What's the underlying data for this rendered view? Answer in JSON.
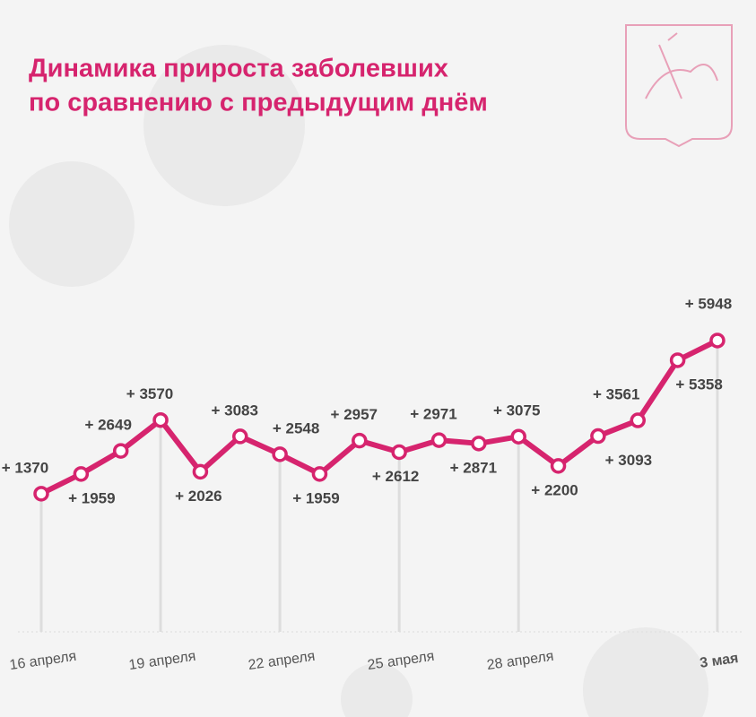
{
  "chart_data": {
    "type": "line",
    "title": [
      "Динамика прироста заболевших",
      "по сравнению с предыдущим днём"
    ],
    "categories": [
      "16 апреля",
      null,
      null,
      "19 апреля",
      null,
      null,
      "22 апреля",
      null,
      null,
      "25 апреля",
      null,
      null,
      "28 апреля",
      null,
      null,
      null,
      null,
      "3 мая"
    ],
    "series": [
      {
        "name": null,
        "color": "#d6246e",
        "values": [
          1370,
          1959,
          2649,
          3570,
          2026,
          3083,
          2548,
          1959,
          2957,
          2612,
          2971,
          2871,
          3075,
          2200,
          3093,
          3561,
          5358,
          5948
        ],
        "value_labels": [
          "+ 1370",
          "+ 1959",
          "+ 2649",
          "+ 3570",
          "+ 2026",
          "+ 3083",
          "+ 2548",
          "+ 1959",
          "+ 2957",
          "+ 2612",
          "+ 2971",
          "+ 2871",
          "+ 3075",
          "+ 2200",
          "+ 3093",
          "+ 3561",
          "+ 5358",
          "+ 5948"
        ]
      }
    ],
    "ylim": [
      0,
      6000
    ]
  }
}
